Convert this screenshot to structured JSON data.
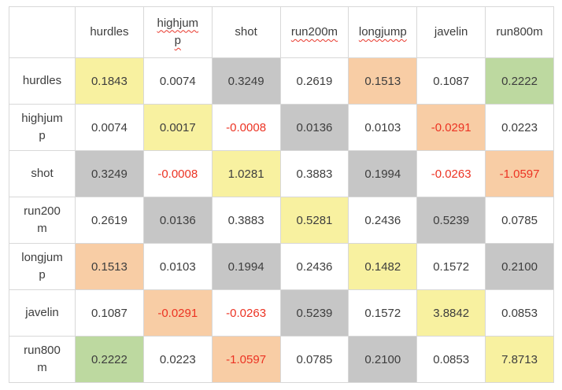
{
  "page": {
    "background": "#ffffff"
  },
  "colors": {
    "white": "#ffffff",
    "yellow": "#f8f1a0",
    "gray": "#c6c6c6",
    "orange": "#f8cda5",
    "green": "#bdd9a0",
    "border_inner": "#d8d8d8",
    "border_outer": "#c3c3c3",
    "text": "#3d3d3d",
    "negative_text": "#ec3323",
    "spellcheck_underline": "#e8372b"
  },
  "matrix": {
    "corner_label": "",
    "columns": [
      {
        "label": "hurdles",
        "spellcheck": false,
        "wrap": false
      },
      {
        "label": "highjump",
        "spellcheck": true,
        "wrap": true
      },
      {
        "label": "shot",
        "spellcheck": false,
        "wrap": false
      },
      {
        "label": "run200m",
        "spellcheck": true,
        "wrap": false
      },
      {
        "label": "longjump",
        "spellcheck": true,
        "wrap": false
      },
      {
        "label": "javelin",
        "spellcheck": false,
        "wrap": false
      },
      {
        "label": "run800m",
        "spellcheck": false,
        "wrap": false
      }
    ],
    "rows": [
      {
        "label": "hurdles",
        "wrap": false,
        "cells": [
          {
            "text": "0.1843",
            "bg": "yellow",
            "negative": false
          },
          {
            "text": "0.0074",
            "bg": "white",
            "negative": false
          },
          {
            "text": "0.3249",
            "bg": "gray",
            "negative": false
          },
          {
            "text": "0.2619",
            "bg": "white",
            "negative": false
          },
          {
            "text": "0.1513",
            "bg": "orange",
            "negative": false
          },
          {
            "text": "0.1087",
            "bg": "white",
            "negative": false
          },
          {
            "text": "0.2222",
            "bg": "green",
            "negative": false
          }
        ]
      },
      {
        "label": "highjump",
        "wrap": true,
        "cells": [
          {
            "text": "0.0074",
            "bg": "white",
            "negative": false
          },
          {
            "text": "0.0017",
            "bg": "yellow",
            "negative": false
          },
          {
            "text": "-0.0008",
            "bg": "white",
            "negative": true
          },
          {
            "text": "0.0136",
            "bg": "gray",
            "negative": false
          },
          {
            "text": "0.0103",
            "bg": "white",
            "negative": false
          },
          {
            "text": "-0.0291",
            "bg": "orange",
            "negative": true
          },
          {
            "text": "0.0223",
            "bg": "white",
            "negative": false
          }
        ]
      },
      {
        "label": "shot",
        "wrap": false,
        "cells": [
          {
            "text": "0.3249",
            "bg": "gray",
            "negative": false
          },
          {
            "text": "-0.0008",
            "bg": "white",
            "negative": true
          },
          {
            "text": "1.0281",
            "bg": "yellow",
            "negative": false
          },
          {
            "text": "0.3883",
            "bg": "white",
            "negative": false
          },
          {
            "text": "0.1994",
            "bg": "gray",
            "negative": false
          },
          {
            "text": "-0.0263",
            "bg": "white",
            "negative": true
          },
          {
            "text": "-1.0597",
            "bg": "orange",
            "negative": true
          }
        ]
      },
      {
        "label": "run200m",
        "wrap": true,
        "cells": [
          {
            "text": "0.2619",
            "bg": "white",
            "negative": false
          },
          {
            "text": "0.0136",
            "bg": "gray",
            "negative": false
          },
          {
            "text": "0.3883",
            "bg": "white",
            "negative": false
          },
          {
            "text": "0.5281",
            "bg": "yellow",
            "negative": false
          },
          {
            "text": "0.2436",
            "bg": "white",
            "negative": false
          },
          {
            "text": "0.5239",
            "bg": "gray",
            "negative": false
          },
          {
            "text": "0.0785",
            "bg": "white",
            "negative": false
          }
        ]
      },
      {
        "label": "longjump",
        "wrap": true,
        "cells": [
          {
            "text": "0.1513",
            "bg": "orange",
            "negative": false
          },
          {
            "text": "0.0103",
            "bg": "white",
            "negative": false
          },
          {
            "text": "0.1994",
            "bg": "gray",
            "negative": false
          },
          {
            "text": "0.2436",
            "bg": "white",
            "negative": false
          },
          {
            "text": "0.1482",
            "bg": "yellow",
            "negative": false
          },
          {
            "text": "0.1572",
            "bg": "white",
            "negative": false
          },
          {
            "text": "0.2100",
            "bg": "gray",
            "negative": false
          }
        ]
      },
      {
        "label": "javelin",
        "wrap": false,
        "cells": [
          {
            "text": "0.1087",
            "bg": "white",
            "negative": false
          },
          {
            "text": "-0.0291",
            "bg": "orange",
            "negative": true
          },
          {
            "text": "-0.0263",
            "bg": "white",
            "negative": true
          },
          {
            "text": "0.5239",
            "bg": "gray",
            "negative": false
          },
          {
            "text": "0.1572",
            "bg": "white",
            "negative": false
          },
          {
            "text": "3.8842",
            "bg": "yellow",
            "negative": false
          },
          {
            "text": "0.0853",
            "bg": "white",
            "negative": false
          }
        ]
      },
      {
        "label": "run800m",
        "wrap": true,
        "cells": [
          {
            "text": "0.2222",
            "bg": "green",
            "negative": false
          },
          {
            "text": "0.0223",
            "bg": "white",
            "negative": false
          },
          {
            "text": "-1.0597",
            "bg": "orange",
            "negative": true
          },
          {
            "text": "0.0785",
            "bg": "white",
            "negative": false
          },
          {
            "text": "0.2100",
            "bg": "gray",
            "negative": false
          },
          {
            "text": "0.0853",
            "bg": "white",
            "negative": false
          },
          {
            "text": "7.8713",
            "bg": "yellow",
            "negative": false
          }
        ]
      }
    ]
  },
  "chart_data": {
    "type": "heatmap",
    "title": "",
    "variables": [
      "hurdles",
      "highjump",
      "shot",
      "run200m",
      "longjump",
      "javelin",
      "run800m"
    ],
    "matrix": [
      [
        0.1843,
        0.0074,
        0.3249,
        0.2619,
        0.1513,
        0.1087,
        0.2222
      ],
      [
        0.0074,
        0.0017,
        -0.0008,
        0.0136,
        0.0103,
        -0.0291,
        0.0223
      ],
      [
        0.3249,
        -0.0008,
        1.0281,
        0.3883,
        0.1994,
        -0.0263,
        -1.0597
      ],
      [
        0.2619,
        0.0136,
        0.3883,
        0.5281,
        0.2436,
        0.5239,
        0.0785
      ],
      [
        0.1513,
        0.0103,
        0.1994,
        0.2436,
        0.1482,
        0.1572,
        0.21
      ],
      [
        0.1087,
        -0.0291,
        -0.0263,
        0.5239,
        0.1572,
        3.8842,
        0.0853
      ],
      [
        0.2222,
        0.0223,
        -1.0597,
        0.0785,
        0.21,
        0.0853,
        7.8713
      ]
    ],
    "cell_highlights": [
      [
        "yellow",
        "white",
        "gray",
        "white",
        "orange",
        "white",
        "green"
      ],
      [
        "white",
        "yellow",
        "white",
        "gray",
        "white",
        "orange",
        "white"
      ],
      [
        "gray",
        "white",
        "yellow",
        "white",
        "gray",
        "white",
        "orange"
      ],
      [
        "white",
        "gray",
        "white",
        "yellow",
        "white",
        "gray",
        "white"
      ],
      [
        "orange",
        "white",
        "gray",
        "white",
        "yellow",
        "white",
        "gray"
      ],
      [
        "white",
        "orange",
        "white",
        "gray",
        "white",
        "yellow",
        "white"
      ],
      [
        "green",
        "white",
        "orange",
        "white",
        "gray",
        "white",
        "yellow"
      ]
    ],
    "negative_values_styled_red": true,
    "layout": {
      "grid": true,
      "legend": "none",
      "value_format": "4 decimals"
    }
  }
}
